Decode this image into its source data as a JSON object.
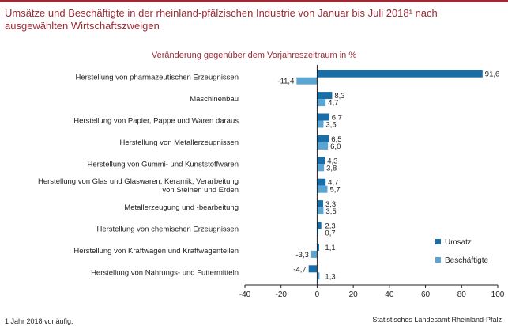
{
  "title": "Umsätze und Beschäftigte in der rheinland-pfälzischen Industrie von Januar bis Juli 2018¹ nach ausgewählten Wirtschaftszweigen",
  "footnote": "1 Jahr 2018 vorläufig.",
  "source": "Statistisches Landesamt Rheinland-Pfalz",
  "colors": {
    "accent": "#9b2a35",
    "umsatz": "#1a6ea8",
    "beschaeftigte": "#5aa5d1"
  },
  "chart_data": {
    "type": "bar",
    "orientation": "horizontal",
    "title": "Veränderung gegenüber dem Vorjahreszeitraum in %",
    "categories": [
      "Herstellung von pharmazeutischen Erzeugnissen",
      "Maschinenbau",
      "Herstellung von Papier, Pappe und Waren daraus",
      "Herstellung von Metallerzeugnissen",
      "Herstellung von Gummi- und Kunststoffwaren",
      "Herstellung von Glas und Glaswaren, Keramik, Verarbeitung von Steinen und Erden",
      "Metallerzeugung und -bearbeitung",
      "Herstellung von chemischen Erzeugnissen",
      "Herstellung von Kraftwagen und Kraftwagenteilen",
      "Herstellung von Nahrungs- und Futtermitteln"
    ],
    "category_lines": [
      [
        "Herstellung von pharmazeutischen Erzeugnissen"
      ],
      [
        "Maschinenbau"
      ],
      [
        "Herstellung von Papier, Pappe und Waren daraus"
      ],
      [
        "Herstellung von Metallerzeugnissen"
      ],
      [
        "Herstellung von Gummi- und Kunststoffwaren"
      ],
      [
        "Herstellung von Glas und Glaswaren, Keramik, Verarbeitung",
        "von Steinen und Erden"
      ],
      [
        "Metallerzeugung und -bearbeitung"
      ],
      [
        "Herstellung von chemischen Erzeugnissen"
      ],
      [
        "Herstellung von Kraftwagen und Kraftwagenteilen"
      ],
      [
        "Herstellung von Nahrungs- und Futtermitteln"
      ]
    ],
    "series": [
      {
        "name": "Umsatz",
        "values": [
          91.6,
          8.3,
          6.7,
          6.5,
          4.3,
          4.7,
          3.3,
          2.3,
          1.1,
          -4.7
        ],
        "labels": [
          "91,6",
          "8,3",
          "6,7",
          "6,5",
          "4,3",
          "4,7",
          "3,3",
          "2,3",
          "1,1",
          "-4,7"
        ]
      },
      {
        "name": "Beschäftigte",
        "values": [
          -11.4,
          4.7,
          3.5,
          6.0,
          3.8,
          5.7,
          3.5,
          0.7,
          -3.3,
          1.3
        ],
        "labels": [
          "-11,4",
          "4,7",
          "3,5",
          "6,0",
          "3,8",
          "5,7",
          "3,5",
          "0,7",
          "-3,3",
          "1,3"
        ]
      }
    ],
    "xlim": [
      -40,
      100
    ],
    "xticks": [
      -40,
      -20,
      0,
      20,
      40,
      60,
      80,
      100
    ],
    "legend_position": "right"
  }
}
